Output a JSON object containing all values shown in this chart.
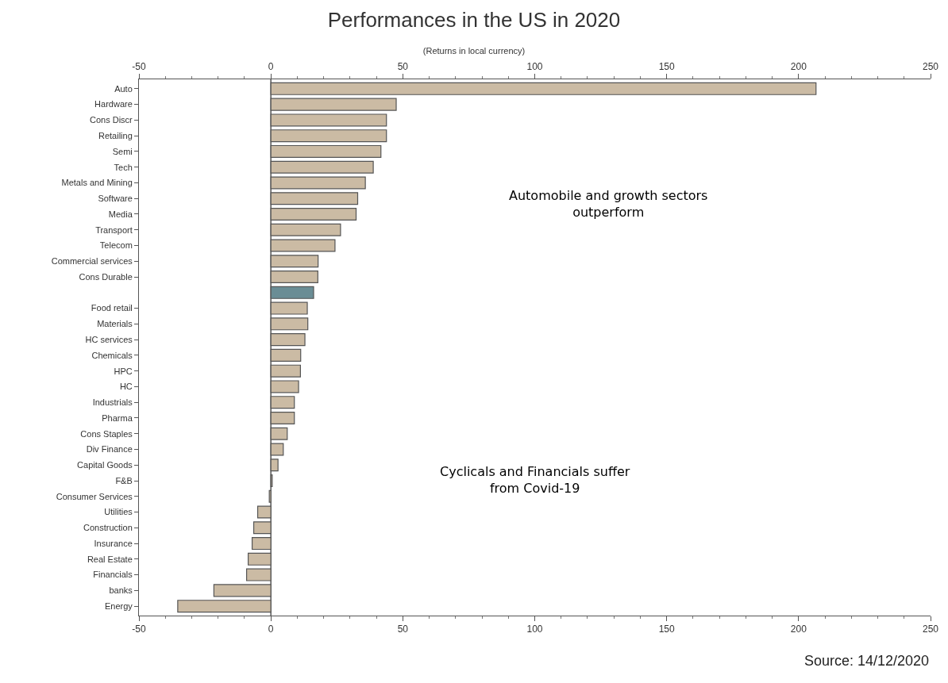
{
  "chart_data": {
    "type": "bar",
    "orientation": "horizontal",
    "title": "Performances in the US in 2020",
    "subtitle": "(Returns in local currency)",
    "categories": [
      "Auto",
      "Hardware",
      "Cons Discr",
      "Retailing",
      "Semi",
      "Tech",
      "Metals and Mining",
      "Software",
      "Media",
      "Transport",
      "Telecom",
      "Commercial services",
      "Cons Durable",
      null,
      "Food retail",
      "Materials",
      "HC services",
      "Chemicals",
      "HPC",
      "HC",
      "Industrials",
      "Pharma",
      "Cons Staples",
      "Div Finance",
      "Capital Goods",
      "F&B",
      "Consumer Services",
      "Utilities",
      "Construction",
      "Insurance",
      "Real Estate",
      "Financials",
      "banks",
      "Energy"
    ],
    "values": [
      206.6,
      47.5,
      43.8,
      43.8,
      41.7,
      38.8,
      35.8,
      32.9,
      32.3,
      26.4,
      24.3,
      17.9,
      17.8,
      16.2,
      13.8,
      14.0,
      12.9,
      11.3,
      11.2,
      10.5,
      8.9,
      8.9,
      6.2,
      4.7,
      2.7,
      0.5,
      -0.6,
      -5.0,
      -6.5,
      -7.1,
      -8.6,
      -9.2,
      -21.6,
      -35.3
    ],
    "colors": [
      "#cbbba4",
      "#cbbba4",
      "#cbbba4",
      "#cbbba4",
      "#cbbba4",
      "#cbbba4",
      "#cbbba4",
      "#cbbba4",
      "#cbbba4",
      "#cbbba4",
      "#cbbba4",
      "#cbbba4",
      "#cbbba4",
      "#6a8d95",
      "#cbbba4",
      "#cbbba4",
      "#cbbba4",
      "#cbbba4",
      "#cbbba4",
      "#cbbba4",
      "#cbbba4",
      "#cbbba4",
      "#cbbba4",
      "#cbbba4",
      "#cbbba4",
      "#cbbba4",
      "#cbbba4",
      "#cbbba4",
      "#cbbba4",
      "#cbbba4",
      "#cbbba4",
      "#cbbba4",
      "#cbbba4",
      "#cbbba4"
    ],
    "xlim": [
      -50,
      250
    ],
    "xticks": [
      -50,
      0,
      50,
      100,
      150,
      200,
      250
    ],
    "x2lim": [
      -50,
      250
    ],
    "x2ticks": [
      -50,
      0,
      50,
      100,
      150,
      200,
      250
    ],
    "ref_lines": [
      {
        "axis": "x",
        "value": 0,
        "color": "#555555",
        "line_style": "solid"
      }
    ],
    "annotations": [
      "Automobile and growth sectors outperform",
      "Cyclicals and Financials suffer from Covid-19",
      "Source: 14/12/2020"
    ]
  }
}
